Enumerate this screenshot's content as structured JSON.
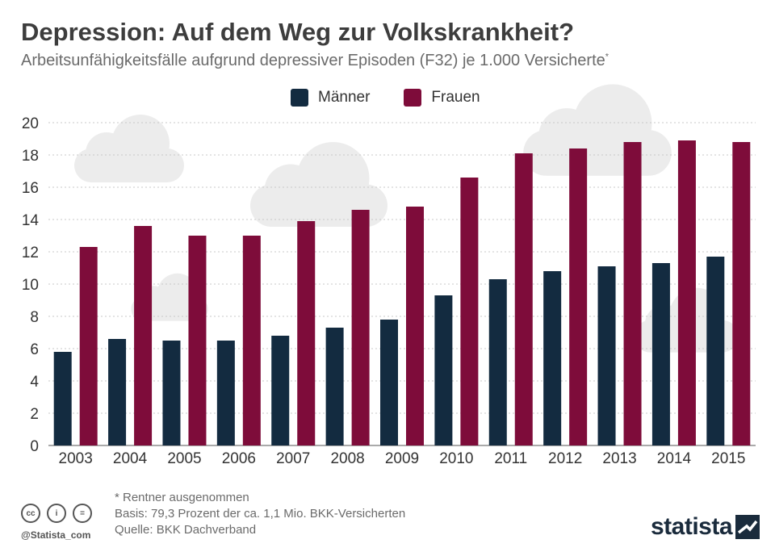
{
  "title": "Depression: Auf dem Weg zur Volkskrankheit?",
  "subtitle": "Arbeitsunfähigkeitsfälle aufgrund depressiver Episoden (F32) je 1.000 Versicherte",
  "subtitle_mark": "*",
  "legend": {
    "men_label": "Männer",
    "women_label": "Frauen"
  },
  "colors": {
    "men": "#132b40",
    "women": "#7e0c3a",
    "grid": "#c8c8c8",
    "cloud": "#ececec"
  },
  "chart_data": {
    "type": "bar",
    "title": "Depression: Auf dem Weg zur Volkskrankheit?",
    "xlabel": "",
    "ylabel": "",
    "ylim": [
      0,
      20
    ],
    "yticks": [
      0,
      2,
      4,
      6,
      8,
      10,
      12,
      14,
      16,
      18,
      20
    ],
    "grid": true,
    "legend_position": "top-center",
    "categories": [
      "2003",
      "2004",
      "2005",
      "2006",
      "2007",
      "2008",
      "2009",
      "2010",
      "2011",
      "2012",
      "2013",
      "2014",
      "2015"
    ],
    "series": [
      {
        "name": "Männer",
        "values": [
          5.8,
          6.6,
          6.5,
          6.5,
          6.8,
          7.3,
          7.8,
          9.3,
          10.3,
          10.8,
          11.1,
          11.3,
          11.7
        ]
      },
      {
        "name": "Frauen",
        "values": [
          12.3,
          13.6,
          13.0,
          13.0,
          13.9,
          14.6,
          14.8,
          16.6,
          18.1,
          18.4,
          18.8,
          18.9,
          18.8
        ]
      }
    ]
  },
  "footer": {
    "note": "* Rentner ausgenommen",
    "basis": "Basis: 79,3 Prozent der ca. 1,1 Mio. BKK-Versicherten",
    "source": "Quelle: BKK Dachverband",
    "handle": "@Statista_com",
    "brand": "statista",
    "cc_icons": [
      "cc-icon",
      "by-icon",
      "nd-icon"
    ],
    "cc_labels": [
      "cc",
      "i",
      "="
    ]
  }
}
